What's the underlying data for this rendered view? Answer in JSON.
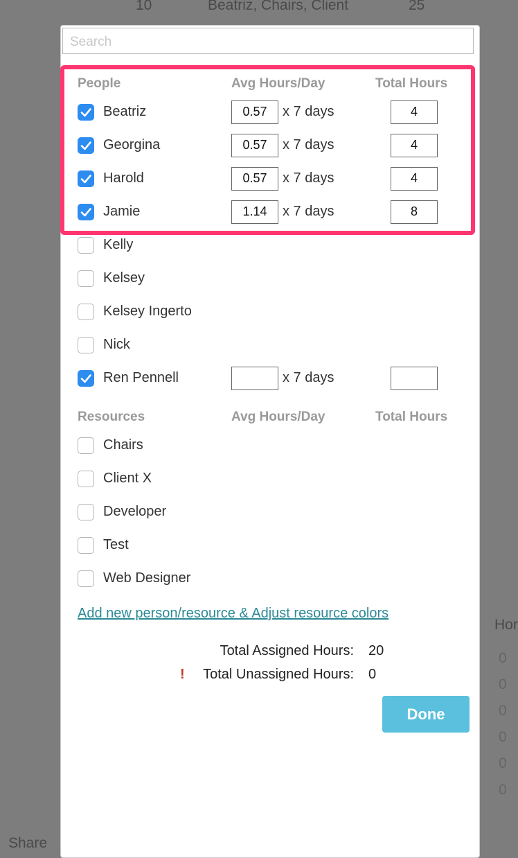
{
  "background": {
    "top_row": [
      "10",
      "Beatriz, Chairs, Client",
      "25"
    ],
    "side_header": "Hor",
    "side_cells": [
      "0",
      "0",
      "0",
      "0",
      "0",
      "0"
    ],
    "footer": "Share"
  },
  "search": {
    "placeholder": "Search"
  },
  "people": {
    "header": {
      "name": "People",
      "avg": "Avg Hours/Day",
      "total": "Total Hours"
    },
    "rows": [
      {
        "name": "Beatriz",
        "checked": true,
        "avg": 0.57,
        "days": "x 7 days",
        "total": 4
      },
      {
        "name": "Georgina",
        "checked": true,
        "avg": 0.57,
        "days": "x 7 days",
        "total": 4
      },
      {
        "name": "Harold",
        "checked": true,
        "avg": 0.57,
        "days": "x 7 days",
        "total": 4
      },
      {
        "name": "Jamie",
        "checked": true,
        "avg": 1.14,
        "days": "x 7 days",
        "total": 8
      },
      {
        "name": "Kelly",
        "checked": false
      },
      {
        "name": "Kelsey",
        "checked": false
      },
      {
        "name": "Kelsey Ingerto",
        "checked": false
      },
      {
        "name": "Nick",
        "checked": false
      },
      {
        "name": "Ren Pennell",
        "checked": true,
        "days": "x 7 days"
      }
    ]
  },
  "resources": {
    "header": {
      "name": "Resources",
      "avg": "Avg Hours/Day",
      "total": "Total Hours"
    },
    "rows": [
      {
        "name": "Chairs",
        "checked": false
      },
      {
        "name": "Client X",
        "checked": false
      },
      {
        "name": "Developer",
        "checked": false
      },
      {
        "name": "Test",
        "checked": false
      },
      {
        "name": "Web Designer",
        "checked": false
      }
    ]
  },
  "link": "Add new person/resource & Adjust resource colors",
  "totals": {
    "assigned_label": "Total Assigned Hours:",
    "assigned": 20,
    "warning": "!",
    "unassigned_label": "Total Unassigned Hours:",
    "unassigned": 0
  },
  "done": "Done"
}
